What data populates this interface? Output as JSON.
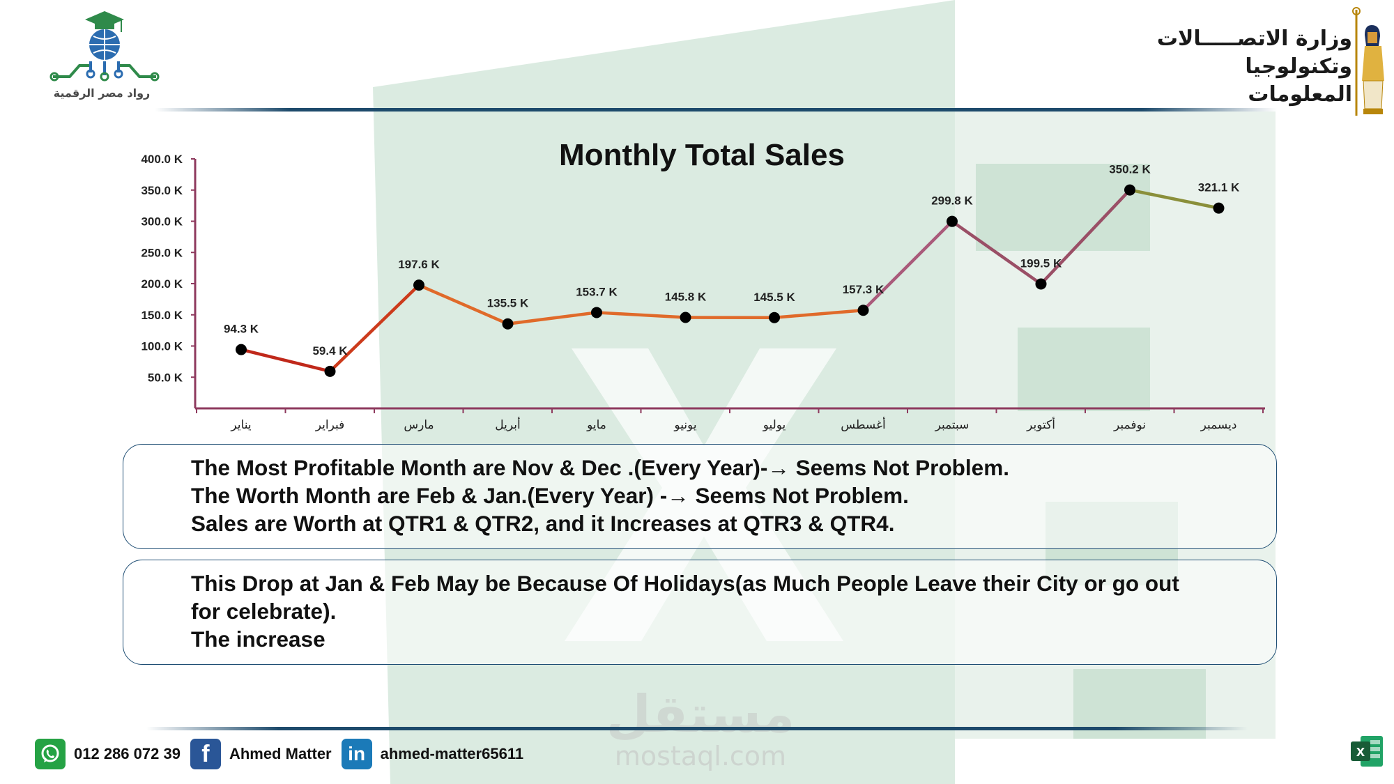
{
  "header": {
    "left_logo_caption": "رواد مصر الرقمية",
    "ministry_name": [
      "وزارة الاتصـــــالات",
      "وتكنولوجيا المعلومات"
    ],
    "left_logo_icon": "graduation-globe-circuit-icon",
    "right_logo_icon": "pharaoh-figure-icon"
  },
  "watermark": {
    "arabic": "مستقل",
    "latin": "mostaql.com",
    "background_icon": "excel-logo-icon"
  },
  "chart_data": {
    "type": "line",
    "title": "Monthly Total Sales",
    "categories": [
      "يناير",
      "فبراير",
      "مارس",
      "أبريل",
      "مايو",
      "يونيو",
      "يوليو",
      "أغسطس",
      "سبتمبر",
      "أكتوبر",
      "نوفمبر",
      "ديسمبر"
    ],
    "values": [
      94.3,
      59.4,
      197.6,
      135.5,
      153.7,
      145.8,
      145.5,
      157.3,
      299.8,
      199.5,
      350.2,
      321.1
    ],
    "data_labels": [
      "94.3 K",
      "59.4 K",
      "197.6 K",
      "135.5 K",
      "153.7 K",
      "145.8 K",
      "145.5 K",
      "157.3 K",
      "299.8 K",
      "199.5 K",
      "350.2 K",
      "321.1 K"
    ],
    "unit": "K",
    "ylim": [
      0,
      400
    ],
    "yticks": [
      50,
      100,
      150,
      200,
      250,
      300,
      350,
      400
    ],
    "ytick_labels": [
      "50.0 K",
      "100.0 K",
      "150.0 K",
      "200.0 K",
      "250.0 K",
      "300.0 K",
      "350.0 K",
      "400.0 K"
    ],
    "xlabel": "",
    "ylabel": "",
    "grid": false,
    "legend": "none",
    "line_colors": [
      "#c0281a",
      "#cc3b1c",
      "#e06a2a",
      "#e06a2a",
      "#e06a2a",
      "#e06a2a",
      "#e06a2a",
      "#a95a7a",
      "#9a4f66",
      "#9a4f66",
      "#8a8f3a"
    ],
    "axis_color": "#8e3a5e",
    "marker_color": "#000000"
  },
  "notes": [
    {
      "lines": [
        "The Most Profitable Month are Nov & Dec .(Every Year)-→ Seems Not Problem.",
        "The Worth Month are Feb & Jan.(Every Year) -→ Seems Not Problem.",
        "Sales are Worth at QTR1 & QTR2,  and it Increases at QTR3 & QTR4."
      ]
    },
    {
      "lines": [
        "This Drop at Jan & Feb May be Because Of Holidays(as Much People Leave their City or go out",
        "for celebrate).",
        "The increase"
      ]
    }
  ],
  "footer": {
    "phone": "012 286 072 39",
    "facebook_name": "Ahmed Matter",
    "linkedin_handle": "ahmed-matter65611",
    "whatsapp_icon": "whatsapp-icon",
    "facebook_icon": "facebook-icon",
    "linkedin_icon": "linkedin-icon",
    "linkedin_glyph": "in",
    "facebook_glyph": "f",
    "excel_glyph": "x"
  },
  "colors": {
    "excel_green": "#1e7145",
    "excel_green_light": "#d4e7dc",
    "rule_blue": "#1d4a6b",
    "whatsapp": "#25a244",
    "facebook": "#2a5697",
    "linkedin": "#1b7ab8"
  }
}
